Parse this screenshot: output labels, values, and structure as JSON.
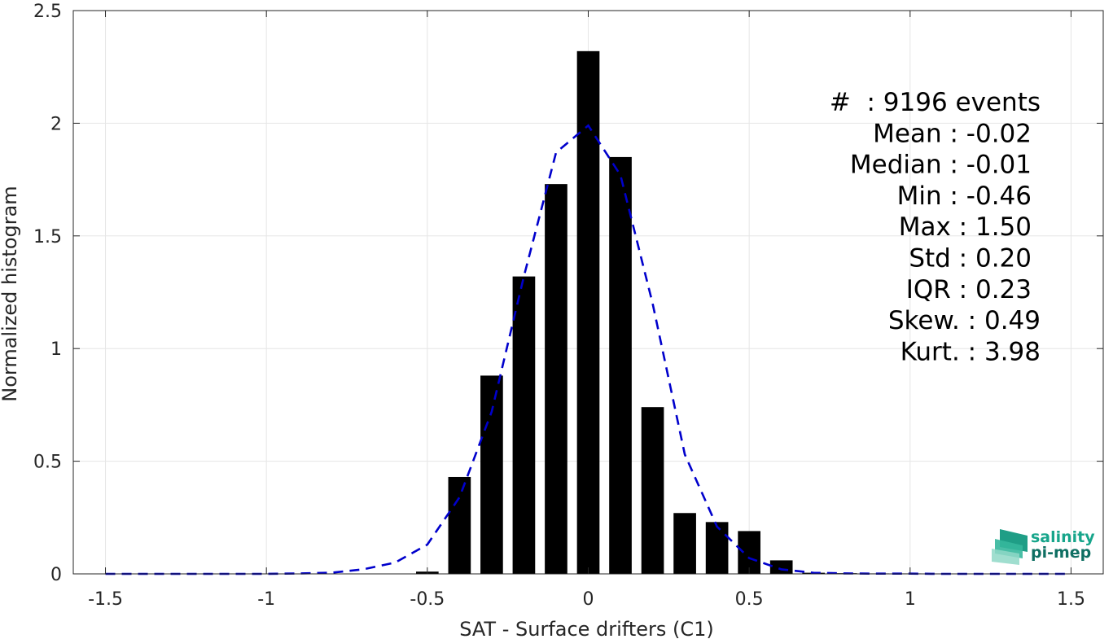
{
  "chart_data": {
    "type": "bar",
    "xlabel": "SAT - Surface drifters (C1)",
    "ylabel": "Normalized histogram",
    "xlim": [
      -1.6,
      1.6
    ],
    "ylim": [
      0,
      2.5
    ],
    "xticks": [
      -1.5,
      -1,
      -0.5,
      0,
      0.5,
      1,
      1.5
    ],
    "xtick_labels": [
      "-1.5",
      "-1",
      "-0.5",
      "0",
      "0.5",
      "1",
      "1.5"
    ],
    "yticks": [
      0,
      0.5,
      1,
      1.5,
      2,
      2.5
    ],
    "ytick_labels": [
      "0",
      "0.5",
      "1",
      "1.5",
      "2",
      "2.5"
    ],
    "grid": true,
    "bar_color": "#000000",
    "bar_width": 0.07,
    "bars": {
      "x": [
        -0.5,
        -0.4,
        -0.3,
        -0.2,
        -0.1,
        0.0,
        0.1,
        0.2,
        0.3,
        0.4,
        0.5,
        0.6,
        0.7,
        0.8,
        0.9,
        1.0,
        1.1,
        1.2,
        1.3,
        1.4,
        1.5
      ],
      "values": [
        0.01,
        0.43,
        0.88,
        1.32,
        1.73,
        2.32,
        1.85,
        0.74,
        0.27,
        0.23,
        0.19,
        0.06,
        0.005,
        0.003,
        0.002,
        0.002,
        0.001,
        0.001,
        0.001,
        0.001,
        0.001
      ]
    },
    "fit_line": {
      "color": "#0000cc",
      "style": "dashed",
      "x": [
        -1.5,
        -1.4,
        -1.3,
        -1.2,
        -1.1,
        -1.0,
        -0.9,
        -0.8,
        -0.7,
        -0.6,
        -0.5,
        -0.4,
        -0.3,
        -0.2,
        -0.1,
        0.0,
        0.1,
        0.2,
        0.3,
        0.4,
        0.5,
        0.6,
        0.7,
        0.8,
        0.9,
        1.0,
        1.1,
        1.2,
        1.3,
        1.4,
        1.5
      ],
      "y": [
        0,
        0,
        0,
        0,
        0,
        0,
        0.002,
        0.005,
        0.02,
        0.05,
        0.13,
        0.34,
        0.72,
        1.32,
        1.87,
        1.99,
        1.77,
        1.2,
        0.53,
        0.21,
        0.07,
        0.02,
        0.005,
        0.002,
        0.001,
        0.001,
        0,
        0,
        0,
        0,
        0
      ]
    },
    "annotations": [
      "#  : 9196 events",
      "Mean : -0.02",
      "Median : -0.01",
      "Min : -0.46",
      "Max : 1.50",
      "Std : 0.20",
      "IQR : 0.23",
      "Skew. : 0.49",
      "Kurt. : 3.98"
    ]
  },
  "logo": {
    "line1": "salinity",
    "line2": "pi-mep",
    "color1": "#17a58b",
    "color2": "#0f6f63"
  }
}
